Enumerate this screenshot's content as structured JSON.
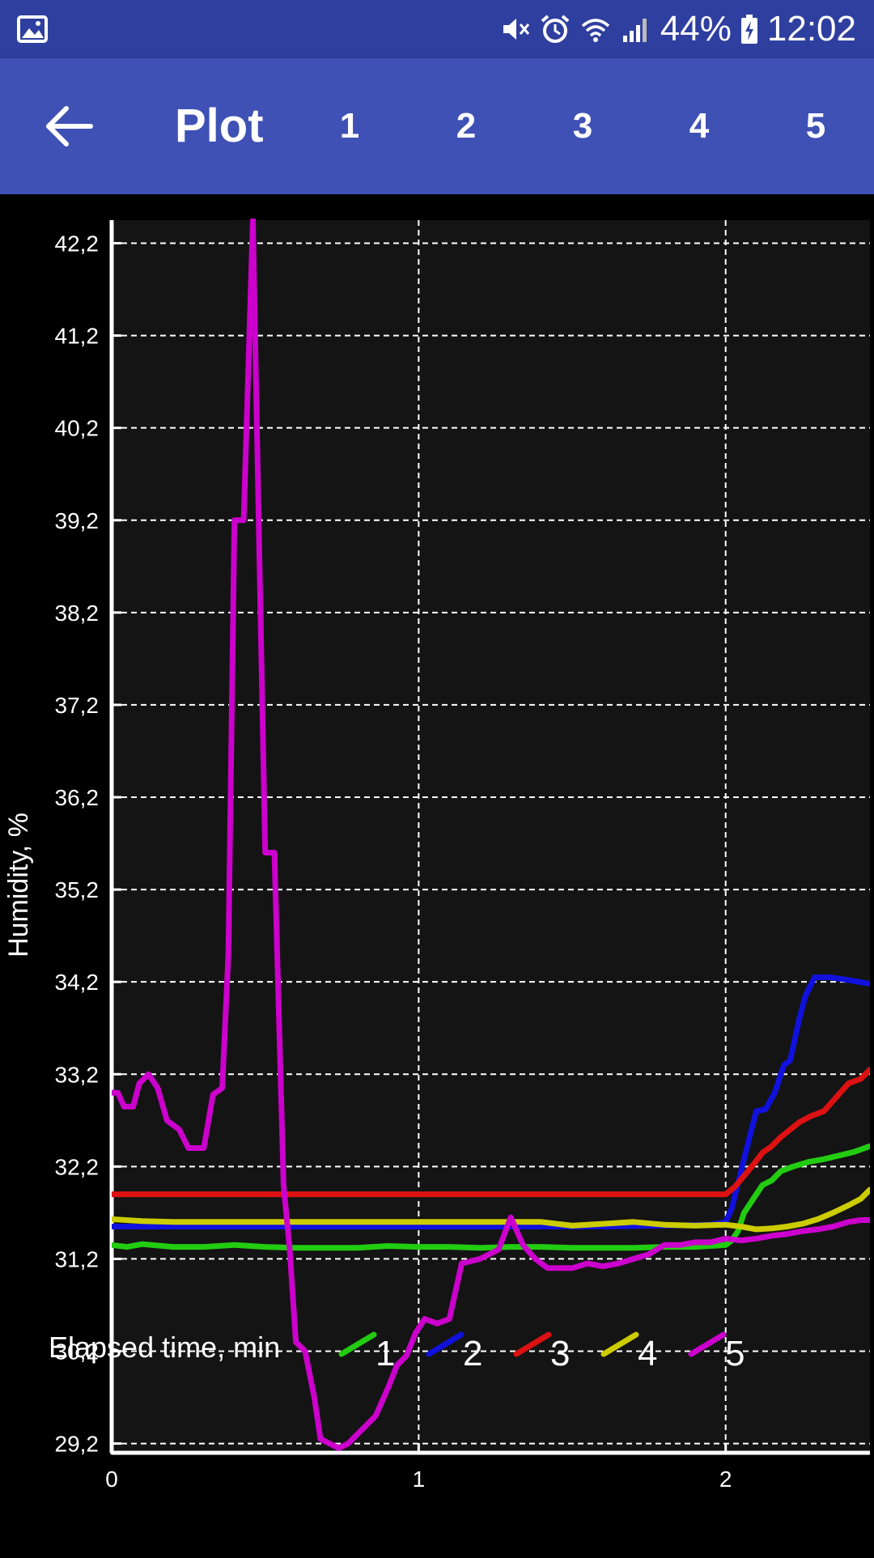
{
  "status_bar": {
    "battery": "44%",
    "time": "12:02",
    "icons": [
      "image-icon",
      "mute-icon",
      "alarm-icon",
      "wifi-icon",
      "signal-icon",
      "battery-icon"
    ]
  },
  "app_bar": {
    "back_icon": "arrow-left-icon",
    "title": "Plot",
    "tabs": [
      "1",
      "2",
      "3",
      "4",
      "5"
    ]
  },
  "colors": {
    "status_bar": "#2f3f9f",
    "app_bar": "#3f51b5",
    "plot_bg": "#141414",
    "series": [
      "#22cc11",
      "#1111dd",
      "#dd1111",
      "#cccc00",
      "#cc00cc"
    ]
  },
  "chart_data": {
    "type": "line",
    "xlabel": "Elapsed time, min",
    "ylabel": "Humidity, %",
    "xlim": [
      0,
      2.47
    ],
    "ylim": [
      29.1,
      42.45
    ],
    "xticks": [
      0,
      1,
      2
    ],
    "xtick_labels": [
      "0",
      "1",
      "2"
    ],
    "yticks": [
      29.2,
      30.2,
      31.2,
      32.2,
      33.2,
      34.2,
      35.2,
      36.2,
      37.2,
      38.2,
      39.2,
      40.2,
      41.2,
      42.2
    ],
    "ytick_labels": [
      "29,2",
      "30,2",
      "31,2",
      "32,2",
      "33,2",
      "34,2",
      "35,2",
      "36,2",
      "37,2",
      "38,2",
      "39,2",
      "40,2",
      "41,2",
      "42,2"
    ],
    "grid": true,
    "legend_position": "bottom",
    "series": [
      {
        "name": "1",
        "color": "#22cc11",
        "points": [
          [
            0,
            31.35
          ],
          [
            0.05,
            31.33
          ],
          [
            0.1,
            31.36
          ],
          [
            0.2,
            31.33
          ],
          [
            0.3,
            31.33
          ],
          [
            0.4,
            31.35
          ],
          [
            0.5,
            31.33
          ],
          [
            0.6,
            31.32
          ],
          [
            0.7,
            31.32
          ],
          [
            0.8,
            31.32
          ],
          [
            0.9,
            31.34
          ],
          [
            1.0,
            31.33
          ],
          [
            1.1,
            31.33
          ],
          [
            1.2,
            31.32
          ],
          [
            1.3,
            31.33
          ],
          [
            1.4,
            31.33
          ],
          [
            1.5,
            31.32
          ],
          [
            1.6,
            31.32
          ],
          [
            1.7,
            31.32
          ],
          [
            1.8,
            31.33
          ],
          [
            1.9,
            31.33
          ],
          [
            2.0,
            31.35
          ],
          [
            2.02,
            31.4
          ],
          [
            2.04,
            31.5
          ],
          [
            2.06,
            31.7
          ],
          [
            2.09,
            31.85
          ],
          [
            2.12,
            32.0
          ],
          [
            2.15,
            32.05
          ],
          [
            2.18,
            32.15
          ],
          [
            2.22,
            32.2
          ],
          [
            2.27,
            32.25
          ],
          [
            2.32,
            32.28
          ],
          [
            2.37,
            32.32
          ],
          [
            2.42,
            32.36
          ],
          [
            2.47,
            32.42
          ]
        ]
      },
      {
        "name": "2",
        "color": "#1111dd",
        "points": [
          [
            0,
            31.55
          ],
          [
            0.2,
            31.55
          ],
          [
            0.4,
            31.55
          ],
          [
            0.6,
            31.55
          ],
          [
            0.8,
            31.55
          ],
          [
            1.0,
            31.55
          ],
          [
            1.2,
            31.55
          ],
          [
            1.4,
            31.55
          ],
          [
            1.6,
            31.55
          ],
          [
            1.8,
            31.56
          ],
          [
            1.95,
            31.57
          ],
          [
            2.0,
            31.6
          ],
          [
            2.02,
            31.75
          ],
          [
            2.05,
            32.15
          ],
          [
            2.08,
            32.55
          ],
          [
            2.1,
            32.8
          ],
          [
            2.13,
            32.82
          ],
          [
            2.16,
            33.0
          ],
          [
            2.19,
            33.3
          ],
          [
            2.21,
            33.35
          ],
          [
            2.24,
            33.8
          ],
          [
            2.26,
            34.05
          ],
          [
            2.29,
            34.25
          ],
          [
            2.34,
            34.25
          ],
          [
            2.4,
            34.22
          ],
          [
            2.47,
            34.18
          ]
        ]
      },
      {
        "name": "3",
        "color": "#dd1111",
        "points": [
          [
            0,
            31.9
          ],
          [
            0.2,
            31.9
          ],
          [
            0.4,
            31.9
          ],
          [
            0.6,
            31.9
          ],
          [
            0.8,
            31.9
          ],
          [
            1.0,
            31.9
          ],
          [
            1.2,
            31.9
          ],
          [
            1.4,
            31.9
          ],
          [
            1.6,
            31.9
          ],
          [
            1.8,
            31.9
          ],
          [
            1.95,
            31.9
          ],
          [
            2.0,
            31.9
          ],
          [
            2.03,
            31.98
          ],
          [
            2.06,
            32.1
          ],
          [
            2.09,
            32.22
          ],
          [
            2.12,
            32.35
          ],
          [
            2.15,
            32.42
          ],
          [
            2.18,
            32.52
          ],
          [
            2.21,
            32.6
          ],
          [
            2.24,
            32.68
          ],
          [
            2.28,
            32.75
          ],
          [
            2.32,
            32.8
          ],
          [
            2.36,
            32.95
          ],
          [
            2.4,
            33.1
          ],
          [
            2.44,
            33.15
          ],
          [
            2.47,
            33.25
          ]
        ]
      },
      {
        "name": "4",
        "color": "#cccc00",
        "points": [
          [
            0,
            31.63
          ],
          [
            0.1,
            31.61
          ],
          [
            0.2,
            31.6
          ],
          [
            0.4,
            31.6
          ],
          [
            0.6,
            31.6
          ],
          [
            0.8,
            31.6
          ],
          [
            1.0,
            31.6
          ],
          [
            1.2,
            31.6
          ],
          [
            1.4,
            31.6
          ],
          [
            1.5,
            31.56
          ],
          [
            1.6,
            31.58
          ],
          [
            1.7,
            31.6
          ],
          [
            1.8,
            31.57
          ],
          [
            1.9,
            31.56
          ],
          [
            2.0,
            31.57
          ],
          [
            2.05,
            31.55
          ],
          [
            2.1,
            31.52
          ],
          [
            2.15,
            31.53
          ],
          [
            2.2,
            31.55
          ],
          [
            2.25,
            31.58
          ],
          [
            2.3,
            31.63
          ],
          [
            2.35,
            31.7
          ],
          [
            2.4,
            31.78
          ],
          [
            2.44,
            31.85
          ],
          [
            2.47,
            31.95
          ]
        ]
      },
      {
        "name": "5",
        "color": "#cc00cc",
        "points": [
          [
            0,
            33.0
          ],
          [
            0.02,
            33.0
          ],
          [
            0.04,
            32.85
          ],
          [
            0.07,
            32.85
          ],
          [
            0.09,
            33.1
          ],
          [
            0.12,
            33.2
          ],
          [
            0.15,
            33.05
          ],
          [
            0.18,
            32.7
          ],
          [
            0.22,
            32.6
          ],
          [
            0.25,
            32.4
          ],
          [
            0.3,
            32.4
          ],
          [
            0.33,
            32.98
          ],
          [
            0.36,
            33.05
          ],
          [
            0.38,
            34.5
          ],
          [
            0.4,
            39.2
          ],
          [
            0.43,
            39.2
          ],
          [
            0.46,
            42.45
          ],
          [
            0.48,
            39.0
          ],
          [
            0.5,
            35.6
          ],
          [
            0.53,
            35.6
          ],
          [
            0.56,
            32.0
          ],
          [
            0.58,
            31.3
          ],
          [
            0.6,
            30.3
          ],
          [
            0.63,
            30.2
          ],
          [
            0.66,
            29.7
          ],
          [
            0.68,
            29.25
          ],
          [
            0.71,
            29.2
          ],
          [
            0.74,
            29.15
          ],
          [
            0.77,
            29.2
          ],
          [
            0.8,
            29.3
          ],
          [
            0.83,
            29.4
          ],
          [
            0.86,
            29.5
          ],
          [
            0.9,
            29.8
          ],
          [
            0.93,
            30.05
          ],
          [
            0.96,
            30.15
          ],
          [
            0.99,
            30.4
          ],
          [
            1.02,
            30.55
          ],
          [
            1.06,
            30.5
          ],
          [
            1.1,
            30.55
          ],
          [
            1.14,
            31.15
          ],
          [
            1.2,
            31.2
          ],
          [
            1.26,
            31.3
          ],
          [
            1.3,
            31.65
          ],
          [
            1.34,
            31.35
          ],
          [
            1.38,
            31.2
          ],
          [
            1.42,
            31.1
          ],
          [
            1.5,
            31.1
          ],
          [
            1.55,
            31.15
          ],
          [
            1.6,
            31.12
          ],
          [
            1.65,
            31.15
          ],
          [
            1.7,
            31.2
          ],
          [
            1.75,
            31.25
          ],
          [
            1.8,
            31.35
          ],
          [
            1.85,
            31.35
          ],
          [
            1.9,
            31.38
          ],
          [
            1.95,
            31.38
          ],
          [
            2.0,
            31.42
          ],
          [
            2.05,
            31.4
          ],
          [
            2.1,
            31.42
          ],
          [
            2.15,
            31.45
          ],
          [
            2.2,
            31.47
          ],
          [
            2.25,
            31.5
          ],
          [
            2.3,
            31.52
          ],
          [
            2.35,
            31.55
          ],
          [
            2.4,
            31.6
          ],
          [
            2.44,
            31.62
          ],
          [
            2.47,
            31.62
          ]
        ]
      }
    ]
  }
}
